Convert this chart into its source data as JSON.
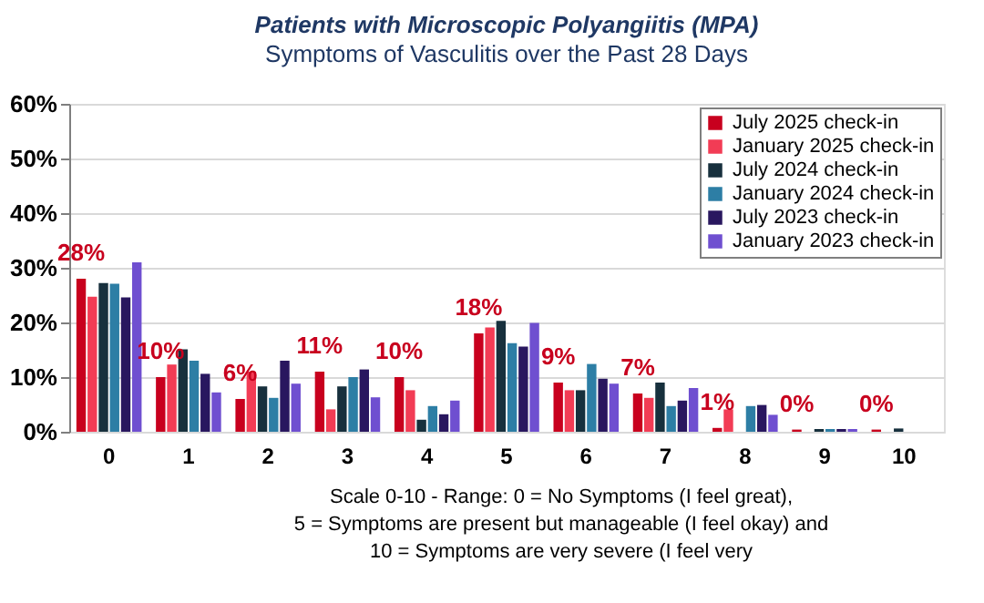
{
  "chart_data": {
    "type": "bar",
    "title": "Patients with Microscopic Polyangiitis (MPA)",
    "subtitle": "Symptoms of Vasculitis over the Past 28 Days",
    "categories": [
      "0",
      "1",
      "2",
      "3",
      "4",
      "5",
      "6",
      "7",
      "8",
      "9",
      "10"
    ],
    "series": [
      {
        "name": "July 2025 check-in",
        "color": "#c8001e",
        "values": [
          28,
          10,
          6,
          11,
          10,
          18,
          9,
          7,
          0.7,
          0.4,
          0.4
        ],
        "value_labels": [
          "28%",
          "10%",
          "6%",
          "11%",
          "10%",
          "18%",
          "9%",
          "7%",
          "1%",
          "0%",
          "0%"
        ]
      },
      {
        "name": "January 2025 check-in",
        "color": "#f23c55",
        "values": [
          24.7,
          12.3,
          11,
          4.1,
          7.6,
          19.1,
          7.6,
          6.2,
          4.1,
          0,
          0
        ]
      },
      {
        "name": "July 2024 check-in",
        "color": "#17303d",
        "values": [
          27.2,
          15.1,
          8.3,
          8.3,
          2.2,
          20.3,
          7.6,
          9,
          0,
          0.5,
          0.6
        ]
      },
      {
        "name": "January 2024 check-in",
        "color": "#2d7ea5",
        "values": [
          27.1,
          13,
          6.2,
          10,
          4.7,
          16.2,
          12.4,
          4.7,
          4.7,
          0.5,
          0
        ]
      },
      {
        "name": "July 2023 check-in",
        "color": "#29175f",
        "values": [
          24.6,
          10.6,
          13,
          11.4,
          3.2,
          15.6,
          9.7,
          5.7,
          4.9,
          0.5,
          0
        ]
      },
      {
        "name": "January 2023 check-in",
        "color": "#6f4fd0",
        "values": [
          31,
          7.2,
          8.8,
          6.3,
          5.7,
          19.9,
          8.8,
          8,
          3.1,
          0.5,
          0
        ]
      }
    ],
    "ylim": [
      0,
      60
    ],
    "yticks": [
      {
        "value": 0,
        "label": "0%"
      },
      {
        "value": 10,
        "label": "10%"
      },
      {
        "value": 20,
        "label": "20%"
      },
      {
        "value": 30,
        "label": "30%"
      },
      {
        "value": 40,
        "label": "40%"
      },
      {
        "value": 50,
        "label": "50%"
      },
      {
        "value": 60,
        "label": "60%"
      }
    ],
    "grid": "y",
    "legend": "top right",
    "annotations": [
      "Scale 0-10 - Range: 0 = No Symptoms (I feel great),",
      "5 = Symptoms are present but manageable (I feel okay) and",
      "10 = Symptoms are very severe (I feel very"
    ]
  }
}
